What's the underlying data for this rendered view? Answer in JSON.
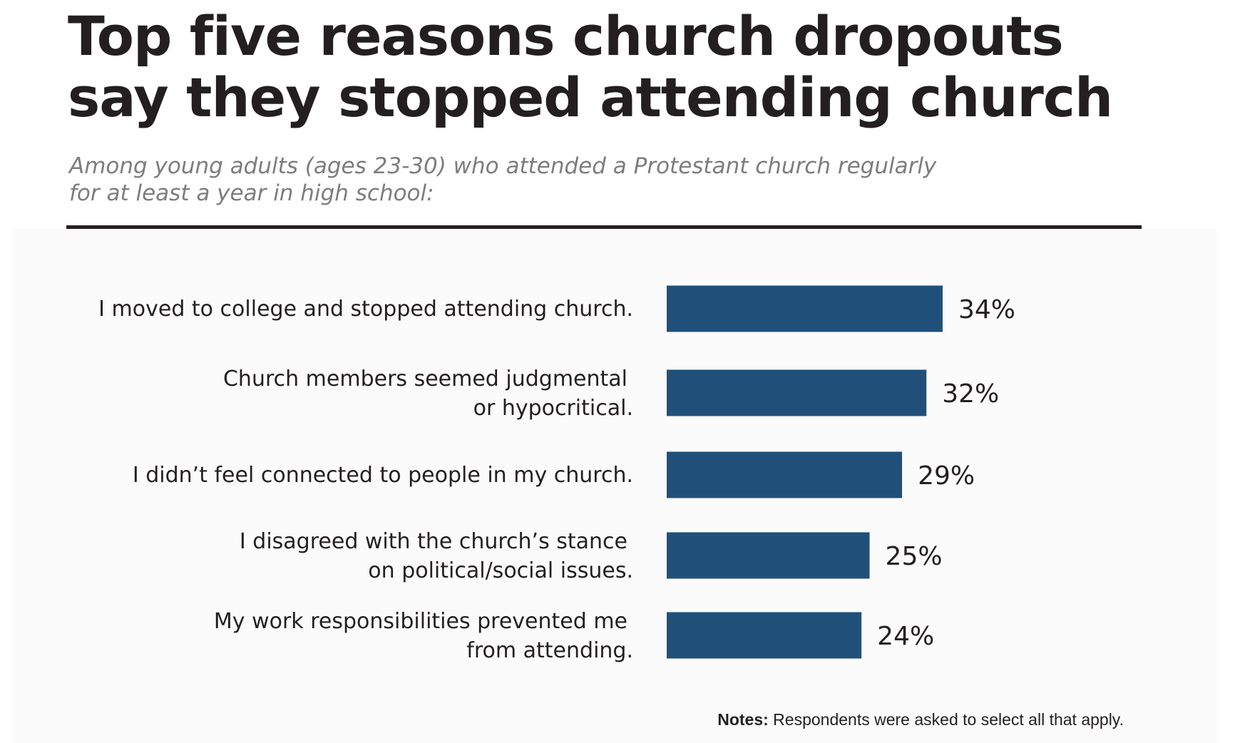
{
  "chart_data": {
    "type": "bar",
    "orientation": "horizontal",
    "title": "Top five reasons church dropouts say they stopped attending church",
    "subtitle": [
      "Among young adults (ages 23-30) who attended a Protestant church regularly",
      "for at least a year in high school:"
    ],
    "categories": [
      [
        "I moved to college and stopped attending church."
      ],
      [
        "Church members seemed judgmental",
        "or hypocritical."
      ],
      [
        "I didn’t feel connected to people in my church."
      ],
      [
        "I disagreed with the church’s stance",
        "on political/social issues."
      ],
      [
        "My work responsibilities prevented me",
        "from attending."
      ]
    ],
    "values": [
      34,
      32,
      29,
      25,
      24
    ],
    "value_labels": [
      "34%",
      "32%",
      "29%",
      "25%",
      "24%"
    ],
    "unit": "%",
    "grid": false,
    "bar_color": "#20507a",
    "notes_label": "Notes:",
    "notes_text": " Respondents were asked to select all that apply."
  }
}
